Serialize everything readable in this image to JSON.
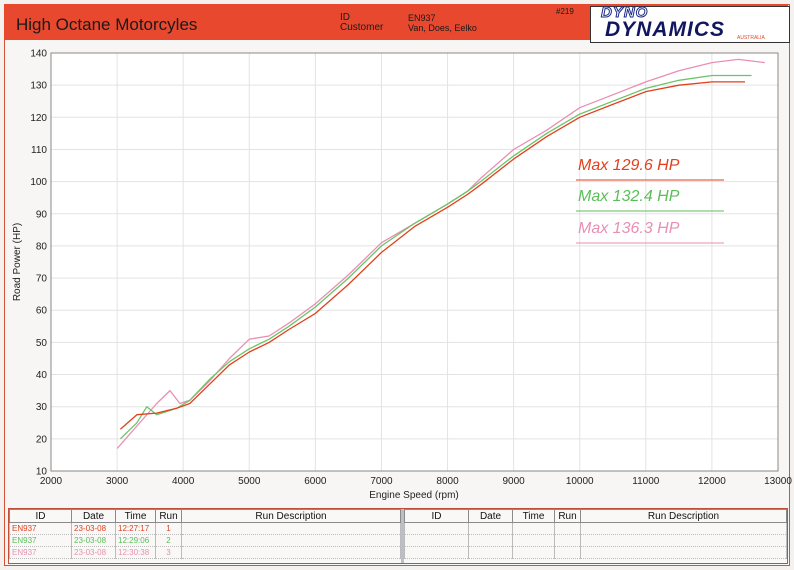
{
  "header": {
    "company": "High Octane Motorcyles",
    "id_label": "ID",
    "customer_label": "Customer",
    "id_value": "EN937",
    "customer_value": "Van, Does, Eelko",
    "run_number": "#219",
    "logo_top": "DYNO",
    "logo_main": "DYNAMICS",
    "logo_sub": "AUSTRALIA"
  },
  "chart_data": {
    "type": "line",
    "xlabel": "Engine Speed (rpm)",
    "ylabel": "Road Power (HP)",
    "xlim": [
      2000,
      13000
    ],
    "ylim": [
      10,
      140
    ],
    "xticks": [
      2000,
      3000,
      4000,
      5000,
      6000,
      7000,
      8000,
      9000,
      10000,
      11000,
      12000,
      13000
    ],
    "yticks": [
      10,
      20,
      30,
      40,
      50,
      60,
      70,
      80,
      90,
      100,
      110,
      120,
      130,
      140
    ],
    "grid": true,
    "series": [
      {
        "name": "Run 1",
        "color": "#e2401c",
        "x": [
          3050,
          3300,
          3600,
          3900,
          4100,
          4400,
          4700,
          5000,
          5300,
          5600,
          6000,
          6500,
          7000,
          7500,
          8000,
          8300,
          8500,
          9000,
          9500,
          10000,
          10500,
          11000,
          11500,
          12000,
          12500
        ],
        "y": [
          23,
          27.5,
          28,
          29.5,
          31,
          37,
          43,
          47,
          50,
          54,
          59,
          68,
          78,
          86,
          92,
          96,
          99,
          107,
          114,
          120,
          124,
          128,
          130,
          131,
          131
        ]
      },
      {
        "name": "Run 2",
        "color": "#6cc46a",
        "x": [
          3050,
          3300,
          3450,
          3600,
          3900,
          4100,
          4400,
          4700,
          5000,
          5300,
          5600,
          6000,
          6500,
          7000,
          7500,
          8000,
          8300,
          8500,
          9000,
          9500,
          10000,
          10500,
          11000,
          11500,
          12000,
          12600
        ],
        "y": [
          20,
          25,
          30,
          27.5,
          29.5,
          32,
          38.5,
          44,
          48,
          51,
          55,
          61,
          70,
          80,
          87,
          93,
          97,
          100,
          108,
          115,
          121,
          125,
          129,
          131.5,
          133,
          133
        ]
      },
      {
        "name": "Run 3",
        "color": "#e98fb2",
        "x": [
          3000,
          3300,
          3600,
          3800,
          3950,
          4100,
          4400,
          4700,
          5000,
          5300,
          5600,
          6000,
          6500,
          7000,
          7500,
          8000,
          8300,
          8500,
          9000,
          9500,
          10000,
          10500,
          11000,
          11500,
          12000,
          12400,
          12800
        ],
        "y": [
          17,
          24,
          31,
          35,
          31,
          32,
          38,
          45,
          51,
          52,
          56,
          62,
          71,
          81,
          87,
          93,
          97,
          101,
          110,
          116,
          123,
          127,
          131,
          134.5,
          137,
          138,
          137
        ]
      }
    ],
    "annotations": [
      {
        "text": "Max 129.6 HP",
        "color": "#e2401c"
      },
      {
        "text": "Max 132.4 HP",
        "color": "#5bbd59"
      },
      {
        "text": "Max 136.3 HP",
        "color": "#e98fb2"
      }
    ]
  },
  "run_table": {
    "headers": [
      "ID",
      "Date",
      "Time",
      "Run",
      "Run Description"
    ],
    "rows": [
      {
        "id": "EN937",
        "date": "23-03-08",
        "time": "12:27:17",
        "run": "1",
        "color": "#e2401c"
      },
      {
        "id": "EN937",
        "date": "23-03-08",
        "time": "12:29:06",
        "run": "2",
        "color": "#5bbd59"
      },
      {
        "id": "EN937",
        "date": "23-03-08",
        "time": "12:30:38",
        "run": "3",
        "color": "#e98fb2"
      }
    ]
  }
}
